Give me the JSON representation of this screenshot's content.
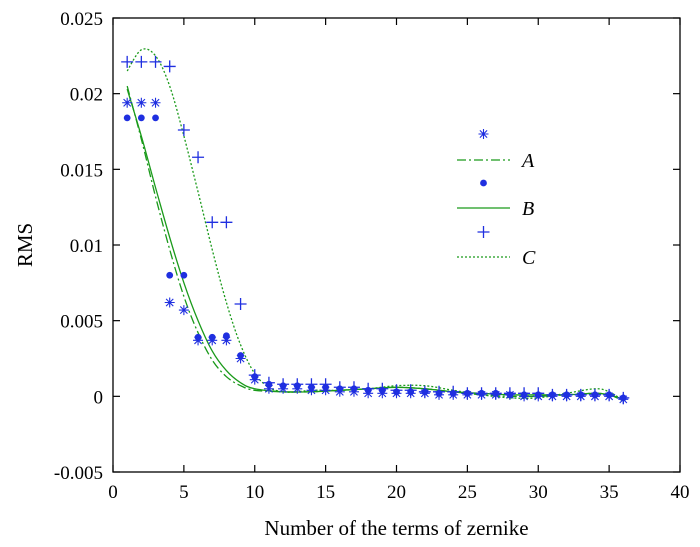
{
  "chart_data": {
    "type": "scatter",
    "xlabel": "Number of the terms of zernike",
    "ylabel": "RMS",
    "xlim": [
      0,
      40
    ],
    "ylim": [
      -0.005,
      0.025
    ],
    "x_ticks": [
      "0",
      "5",
      "10",
      "15",
      "20",
      "25",
      "30",
      "35",
      "40"
    ],
    "y_ticks": [
      "-0.005",
      "0",
      "0.005",
      "0.01",
      "0.015",
      "0.02",
      "0.025"
    ],
    "grid": false,
    "legend_position": "right",
    "legend_entries": [
      "",
      "A",
      "",
      "B",
      "",
      "C"
    ],
    "series": [
      {
        "name": "A",
        "marker": "asterisk",
        "color": "#1f2fe0",
        "line_color": "#1a9a1a",
        "line_style": "dash-dot",
        "x": [
          1,
          2,
          3,
          4,
          5,
          6,
          7,
          8,
          9,
          10,
          11,
          12,
          13,
          14,
          15,
          16,
          17,
          18,
          19,
          20,
          21,
          22,
          23,
          24,
          25,
          26,
          27,
          28,
          29,
          30,
          31,
          32,
          33,
          34,
          35,
          36
        ],
        "y": [
          0.0194,
          0.0194,
          0.0194,
          0.0062,
          0.0057,
          0.0037,
          0.0037,
          0.0037,
          0.0025,
          0.0011,
          0.0005,
          0.0005,
          0.0005,
          0.0004,
          0.0004,
          0.0003,
          0.0003,
          0.0002,
          0.0002,
          0.0002,
          0.0002,
          0.0002,
          0.0001,
          0.0001,
          0.0001,
          0.0001,
          0.0001,
          0.0001,
          0.0,
          0.0,
          0.0,
          0.0,
          0.0,
          0.0,
          0.0,
          -0.0002
        ],
        "fit": [
          [
            1,
            0.0205
          ],
          [
            2,
            0.017
          ],
          [
            3,
            0.0132
          ],
          [
            4,
            0.0097
          ],
          [
            5,
            0.0066
          ],
          [
            6,
            0.0042
          ],
          [
            7,
            0.0024
          ],
          [
            8,
            0.0013
          ],
          [
            9,
            0.0007
          ],
          [
            10,
            0.0004
          ],
          [
            12,
            0.0003
          ],
          [
            14,
            0.0003
          ],
          [
            16,
            0.0004
          ],
          [
            18,
            0.0005
          ],
          [
            20,
            0.0006
          ],
          [
            22,
            0.0005
          ],
          [
            24,
            0.0003
          ],
          [
            26,
            0.0001
          ],
          [
            28,
            0.0
          ],
          [
            30,
            0.0
          ],
          [
            32,
            0.0001
          ],
          [
            34,
            0.0002
          ],
          [
            35,
            0.0001
          ],
          [
            36,
            -0.0003
          ]
        ]
      },
      {
        "name": "B",
        "marker": "dot",
        "color": "#1f2fe0",
        "line_color": "#1a9a1a",
        "line_style": "solid",
        "x": [
          1,
          2,
          3,
          4,
          5,
          6,
          7,
          8,
          9,
          10,
          11,
          12,
          13,
          14,
          15,
          16,
          17,
          18,
          19,
          20,
          21,
          22,
          23,
          24,
          25,
          26,
          27,
          28,
          29,
          30,
          31,
          32,
          33,
          34,
          35,
          36
        ],
        "y": [
          0.0184,
          0.0184,
          0.0184,
          0.008,
          0.008,
          0.0039,
          0.0039,
          0.004,
          0.0027,
          0.0013,
          0.0008,
          0.0007,
          0.0007,
          0.0006,
          0.0006,
          0.0005,
          0.0005,
          0.0004,
          0.0004,
          0.0003,
          0.0003,
          0.0003,
          0.0002,
          0.0002,
          0.0002,
          0.0002,
          0.0002,
          0.0001,
          0.0001,
          0.0001,
          0.0001,
          0.0001,
          0.0001,
          0.0001,
          0.0001,
          -0.0001
        ],
        "fit": [
          [
            1,
            0.0203
          ],
          [
            2,
            0.0172
          ],
          [
            3,
            0.0138
          ],
          [
            4,
            0.0105
          ],
          [
            5,
            0.0075
          ],
          [
            6,
            0.005
          ],
          [
            7,
            0.003
          ],
          [
            8,
            0.0017
          ],
          [
            9,
            0.0009
          ],
          [
            10,
            0.0005
          ],
          [
            12,
            0.0003
          ],
          [
            14,
            0.0003
          ],
          [
            16,
            0.0004
          ],
          [
            18,
            0.0005
          ],
          [
            20,
            0.0006
          ],
          [
            22,
            0.0005
          ],
          [
            24,
            0.0003
          ],
          [
            26,
            0.0002
          ],
          [
            28,
            0.0001
          ],
          [
            30,
            0.0001
          ],
          [
            32,
            0.0001
          ],
          [
            34,
            0.0002
          ],
          [
            35,
            0.0001
          ],
          [
            36,
            -0.0002
          ]
        ]
      },
      {
        "name": "C",
        "marker": "plus",
        "color": "#1f2fe0",
        "line_color": "#1a9a1a",
        "line_style": "dotted",
        "x": [
          1,
          2,
          3,
          4,
          5,
          6,
          7,
          8,
          9,
          10,
          11,
          12,
          13,
          14,
          15,
          16,
          17,
          18,
          19,
          20,
          21,
          22,
          23,
          24,
          25,
          26,
          27,
          28,
          29,
          30,
          31,
          32,
          33,
          34,
          35,
          36
        ],
        "y": [
          0.0221,
          0.0221,
          0.0221,
          0.0218,
          0.0176,
          0.0158,
          0.0115,
          0.0115,
          0.0061,
          0.0014,
          0.0009,
          0.0008,
          0.0008,
          0.0008,
          0.0008,
          0.0006,
          0.0006,
          0.0005,
          0.0005,
          0.0004,
          0.0004,
          0.0003,
          0.0003,
          0.0003,
          0.0002,
          0.0002,
          0.0002,
          0.0002,
          0.0002,
          0.0002,
          0.0001,
          0.0001,
          0.0001,
          0.0001,
          0.0001,
          -0.0001
        ],
        "fit": [
          [
            1,
            0.0215
          ],
          [
            2,
            0.0229
          ],
          [
            3,
            0.0225
          ],
          [
            4,
            0.0205
          ],
          [
            5,
            0.0172
          ],
          [
            6,
            0.0135
          ],
          [
            7,
            0.0097
          ],
          [
            8,
            0.0062
          ],
          [
            9,
            0.0034
          ],
          [
            10,
            0.0015
          ],
          [
            11,
            0.0006
          ],
          [
            12,
            0.0003
          ],
          [
            13,
            0.0003
          ],
          [
            14,
            0.0004
          ],
          [
            16,
            0.0004
          ],
          [
            18,
            0.0005
          ],
          [
            20,
            0.0007
          ],
          [
            22,
            0.0007
          ],
          [
            24,
            0.0004
          ],
          [
            26,
            0.0001
          ],
          [
            28,
            -0.0001
          ],
          [
            30,
            -0.0001
          ],
          [
            32,
            0.0002
          ],
          [
            34,
            0.0005
          ],
          [
            35,
            0.0003
          ],
          [
            36,
            -0.0003
          ]
        ]
      }
    ]
  }
}
